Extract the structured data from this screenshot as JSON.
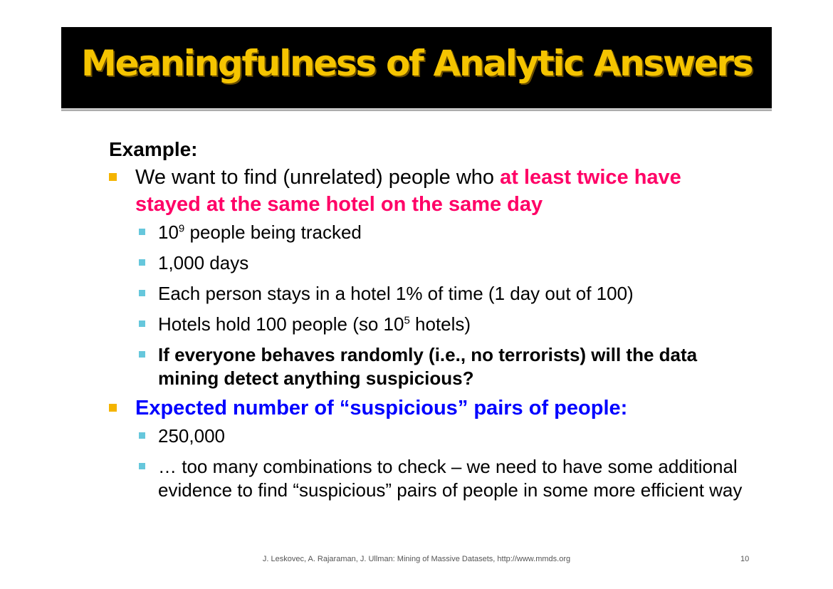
{
  "title": "Meaningfulness of Analytic Answers",
  "heading": "Example:",
  "bullets": [
    {
      "prefix": "We want to find (unrelated) people who ",
      "highlight": "at least twice have stayed at the same hotel on the same day",
      "sub": [
        {
          "base": "10",
          "exp": "9",
          "rest": " people being tracked"
        },
        {
          "text": "1,000 days"
        },
        {
          "text": "Each person stays in a hotel 1% of time (1 day out of 100)"
        },
        {
          "pre": "Hotels hold 100 people (so 10",
          "exp": "5",
          "post": " hotels)"
        },
        {
          "text": "If everyone behaves randomly (i.e., no terrorists) will the data mining detect anything suspicious?"
        }
      ]
    },
    {
      "text": "Expected number of “suspicious” pairs of people:",
      "sub": [
        {
          "text": "250,000"
        },
        {
          "text": "… too many combinations to check – we need to have some additional evidence to find “suspicious” pairs of people in some more efficient way"
        }
      ]
    }
  ],
  "footer": {
    "citation": "J. Leskovec, A. Rajaraman, J. Ullman: Mining of Massive Datasets, http://www.mmds.org",
    "page": "10"
  },
  "colors": {
    "title": "#f5c400",
    "highlight_pink": "#ff0066",
    "highlight_blue": "#0000ff",
    "bullet_l1": "#f4b400",
    "bullet_l2": "#66c7dc"
  }
}
